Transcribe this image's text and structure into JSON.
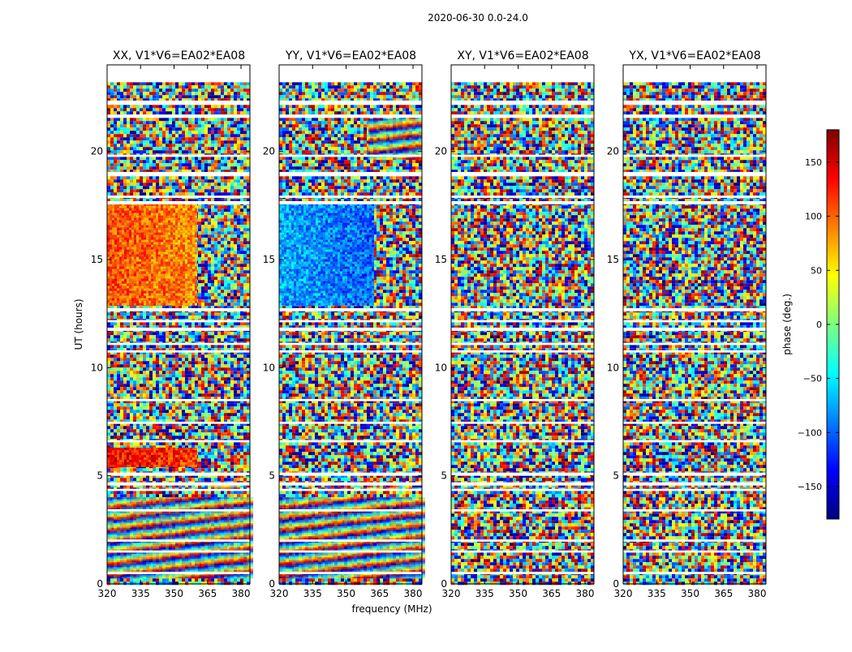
{
  "figure": {
    "suptitle": "2020-06-30 0.0-24.0",
    "ylabel": "UT (hours)",
    "xlabel": "frequency (MHz)"
  },
  "chart_data": [
    {
      "type": "heatmap",
      "title": "XX, V1*V6=EA02*EA08",
      "xlabel": "frequency (MHz)",
      "ylabel": "UT (hours)",
      "xlim": [
        320,
        384
      ],
      "ylim": [
        0,
        24
      ],
      "xticks": [
        320,
        335,
        350,
        365,
        380
      ],
      "yticks": [
        0,
        5,
        10,
        15,
        20
      ],
      "value": "phase (deg.)",
      "features": [
        {
          "x": [
            320,
            360
          ],
          "y": [
            12.9,
            17.6
          ],
          "phase": 110,
          "note": "coherent positive-phase block"
        },
        {
          "x": [
            320,
            360
          ],
          "y": [
            5.5,
            6.3
          ],
          "phase": 140,
          "note": "red speckle band"
        },
        {
          "x": [
            320,
            384
          ],
          "y": [
            0.3,
            4.0
          ],
          "phase": "fringes",
          "note": "horizontal fringe pattern"
        }
      ]
    },
    {
      "type": "heatmap",
      "title": "YY, V1*V6=EA02*EA08",
      "xlabel": "frequency (MHz)",
      "ylabel": "UT (hours)",
      "xlim": [
        320,
        384
      ],
      "ylim": [
        0,
        24
      ],
      "xticks": [
        320,
        335,
        350,
        365,
        380
      ],
      "yticks": [
        0,
        5,
        10,
        15,
        20
      ],
      "value": "phase (deg.)",
      "features": [
        {
          "x": [
            320,
            362
          ],
          "y": [
            12.9,
            17.6
          ],
          "phase": -75,
          "note": "coherent negative-phase block"
        },
        {
          "x": [
            360,
            384
          ],
          "y": [
            19.7,
            21.5
          ],
          "phase": "fringes",
          "note": "arched fringe pattern"
        },
        {
          "x": [
            320,
            384
          ],
          "y": [
            0.3,
            4.0
          ],
          "phase": "fringes",
          "note": "horizontal fringe pattern"
        }
      ]
    },
    {
      "type": "heatmap",
      "title": "XY, V1*V6=EA02*EA08",
      "xlabel": "frequency (MHz)",
      "ylabel": "UT (hours)",
      "xlim": [
        320,
        384
      ],
      "ylim": [
        0,
        24
      ],
      "xticks": [
        320,
        335,
        350,
        365,
        380
      ],
      "yticks": [
        0,
        5,
        10,
        15,
        20
      ],
      "value": "phase (deg.)",
      "features": [
        {
          "x": [
            320,
            384
          ],
          "y": [
            0,
            23.2
          ],
          "phase": "noise",
          "note": "mostly random phase"
        }
      ]
    },
    {
      "type": "heatmap",
      "title": "YX, V1*V6=EA02*EA08",
      "xlabel": "frequency (MHz)",
      "ylabel": "UT (hours)",
      "xlim": [
        320,
        384
      ],
      "ylim": [
        0,
        24
      ],
      "xticks": [
        320,
        335,
        350,
        365,
        380
      ],
      "yticks": [
        0,
        5,
        10,
        15,
        20
      ],
      "value": "phase (deg.)",
      "features": [
        {
          "x": [
            320,
            384
          ],
          "y": [
            0,
            23.2
          ],
          "phase": "noise",
          "note": "mostly random phase"
        }
      ]
    }
  ],
  "flagged_ut_bands": [
    [
      23.2,
      24
    ],
    [
      22.15,
      22.35
    ],
    [
      21.55,
      21.7
    ],
    [
      19.75,
      19.85
    ],
    [
      18.85,
      19.05
    ],
    [
      17.85,
      17.95
    ],
    [
      17.55,
      17.7
    ],
    [
      12.6,
      12.75
    ],
    [
      12.1,
      12.2
    ],
    [
      11.7,
      11.85
    ],
    [
      11.05,
      11.15
    ],
    [
      10.7,
      10.8
    ],
    [
      8.45,
      8.55
    ],
    [
      7.4,
      7.5
    ],
    [
      6.55,
      6.65
    ],
    [
      5.0,
      5.15
    ],
    [
      4.55,
      4.7
    ],
    [
      4.3,
      4.4
    ],
    [
      3.35,
      3.45
    ],
    [
      1.95,
      2.05
    ],
    [
      1.45,
      1.55
    ],
    [
      0.45,
      0.55
    ]
  ],
  "colorbar": {
    "label": "phase (deg.)",
    "range": [
      -180,
      180
    ],
    "ticks": [
      150,
      100,
      50,
      0,
      -50,
      -100,
      -150
    ],
    "tick_labels": [
      "150",
      "100",
      "50",
      "0",
      "−50",
      "−100",
      "−150"
    ],
    "colormap": [
      "#00007f",
      "#0000ff",
      "#007fff",
      "#00ffff",
      "#7fff7f",
      "#ffff00",
      "#ff7f00",
      "#ff0000",
      "#7f0000"
    ]
  }
}
